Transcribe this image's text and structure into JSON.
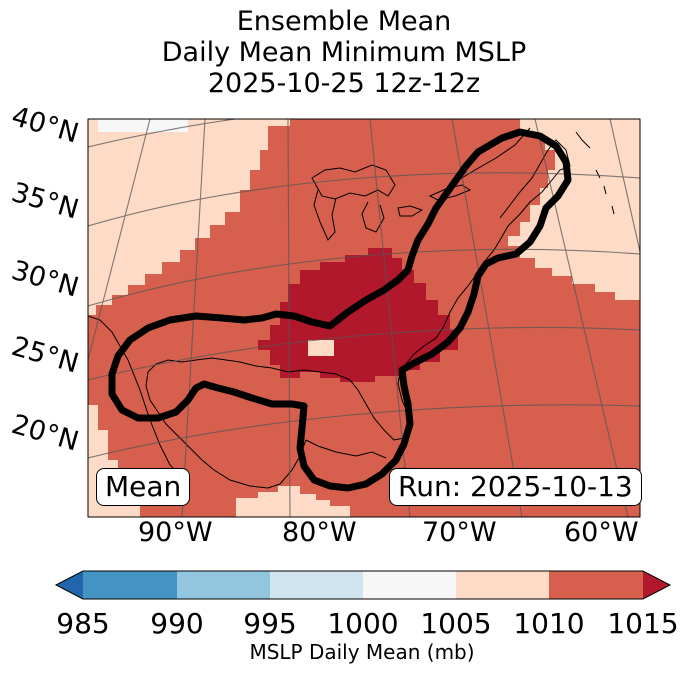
{
  "title": {
    "line1": "Ensemble Mean",
    "line2": "Daily Mean Minimum MSLP",
    "line3": "2025-10-25 12z-12z"
  },
  "map": {
    "lat_labels": [
      "40°N",
      "35°N",
      "30°N",
      "25°N",
      "20°N"
    ],
    "lon_labels": [
      "90°W",
      "80°W",
      "70°W",
      "60°W"
    ],
    "box_left": "Mean",
    "box_right": "Run: 2025-10-13",
    "fill_colors": {
      "c1005": "#fddbc7",
      "c1010": "#d6604d",
      "c1015": "#b2182b"
    },
    "contour_color": "#000000"
  },
  "colorbar": {
    "label": "MSLP Daily Mean (mb)",
    "ticks": [
      "985",
      "990",
      "995",
      "1000",
      "1005",
      "1010",
      "1015"
    ],
    "bins": [
      {
        "range": "<985",
        "color": "#2166ac"
      },
      {
        "range": "985-990",
        "color": "#4393c3"
      },
      {
        "range": "990-995",
        "color": "#92c5de"
      },
      {
        "range": "995-1000",
        "color": "#d1e5f0"
      },
      {
        "range": "1000-1005",
        "color": "#f7f7f7"
      },
      {
        "range": "1005-1010",
        "color": "#fddbc7"
      },
      {
        "range": "1010-1015",
        "color": "#d6604d"
      },
      {
        "range": ">1015",
        "color": "#b2182b"
      }
    ]
  }
}
